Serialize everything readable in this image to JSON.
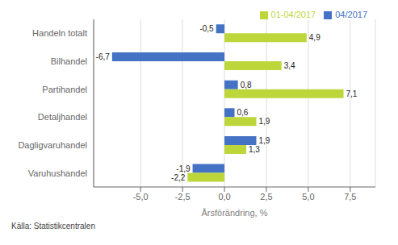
{
  "chart_data": {
    "type": "bar",
    "orientation": "horizontal",
    "xlabel": "Årsförändring, %",
    "categories": [
      "Handeln totalt",
      "Bilhandel",
      "Partihandel",
      "Detaljhandel",
      "Dagligvaruhandel",
      "Varuhushandel"
    ],
    "series": [
      {
        "name": "04/2017",
        "color": "#4472c4",
        "values": [
          -0.5,
          -6.7,
          0.8,
          0.6,
          1.9,
          -1.9
        ],
        "value_labels": [
          "-0,5",
          "-6,7",
          "0,8",
          "0,6",
          "1,9",
          "-1,9"
        ]
      },
      {
        "name": "01-04/2017",
        "color": "#bdd73a",
        "values": [
          4.9,
          3.4,
          7.1,
          1.9,
          1.3,
          -2.2
        ],
        "value_labels": [
          "4,9",
          "3,4",
          "7,1",
          "1,9",
          "1,3",
          "-2,2"
        ]
      }
    ],
    "xlim": [
      -7.8,
      9.0
    ],
    "xticks": [
      {
        "value": -5.0,
        "label": "-5,0"
      },
      {
        "value": -2.5,
        "label": "-2,5"
      },
      {
        "value": 0.0,
        "label": "0,0"
      },
      {
        "value": 2.5,
        "label": "2,5"
      },
      {
        "value": 5.0,
        "label": "5,0"
      },
      {
        "value": 7.5,
        "label": "7,5"
      }
    ],
    "grid": true,
    "legend": "upper right",
    "data_labels": true,
    "annotations": [
      "Källa: Statistikcentralen"
    ]
  }
}
